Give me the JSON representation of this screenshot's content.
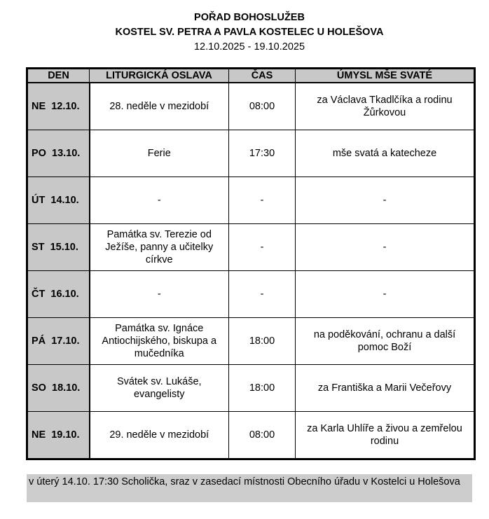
{
  "header": {
    "title": "POŘAD BOHOSLUŽEB",
    "subtitle": "KOSTEL SV. PETRA A PAVLA KOSTELEC U HOLEŠOVA",
    "date_range": "12.10.2025 - 19.10.2025"
  },
  "table": {
    "columns": [
      "DEN",
      "LITURGICKÁ OSLAVA",
      "ČAS",
      "ÚMYSL MŠE SVATÉ"
    ],
    "rows": [
      {
        "day": "NE  12.10.",
        "celebration": "28. neděle v mezidobí",
        "time": "08:00",
        "intention": "za Václava Tkadlčíka a rodinu Žůrkovou"
      },
      {
        "day": "PO  13.10.",
        "celebration": "Ferie",
        "time": "17:30",
        "intention": "mše svatá a katecheze"
      },
      {
        "day": "ÚT  14.10.",
        "celebration": "-",
        "time": "-",
        "intention": "-"
      },
      {
        "day": "ST  15.10.",
        "celebration": "Památka sv. Terezie od Ježíše, panny a učitelky církve",
        "time": "-",
        "intention": "-"
      },
      {
        "day": "ČT  16.10.",
        "celebration": "-",
        "time": "-",
        "intention": "-"
      },
      {
        "day": "PÁ  17.10.",
        "celebration": "Památka sv. Ignáce Antiochijského, biskupa a mučedníka",
        "time": "18:00",
        "intention": "na poděkování, ochranu a další pomoc Boží"
      },
      {
        "day": "SO  18.10.",
        "celebration": "Svátek sv. Lukáše, evangelisty",
        "time": "18:00",
        "intention": "za Františka a Marii Večeřovy"
      },
      {
        "day": "NE  19.10.",
        "celebration": "29. neděle v mezidobí",
        "time": "08:00",
        "intention": "za Karla Uhlíře a živou a zemřelou rodinu"
      }
    ]
  },
  "note": "v úterý 14.10. 17:30 Scholička, sraz v zasedací místnosti Obecního úřadu v Kostelci u Holešova",
  "colors": {
    "shading": "#c8c8c8",
    "border": "#000000"
  }
}
